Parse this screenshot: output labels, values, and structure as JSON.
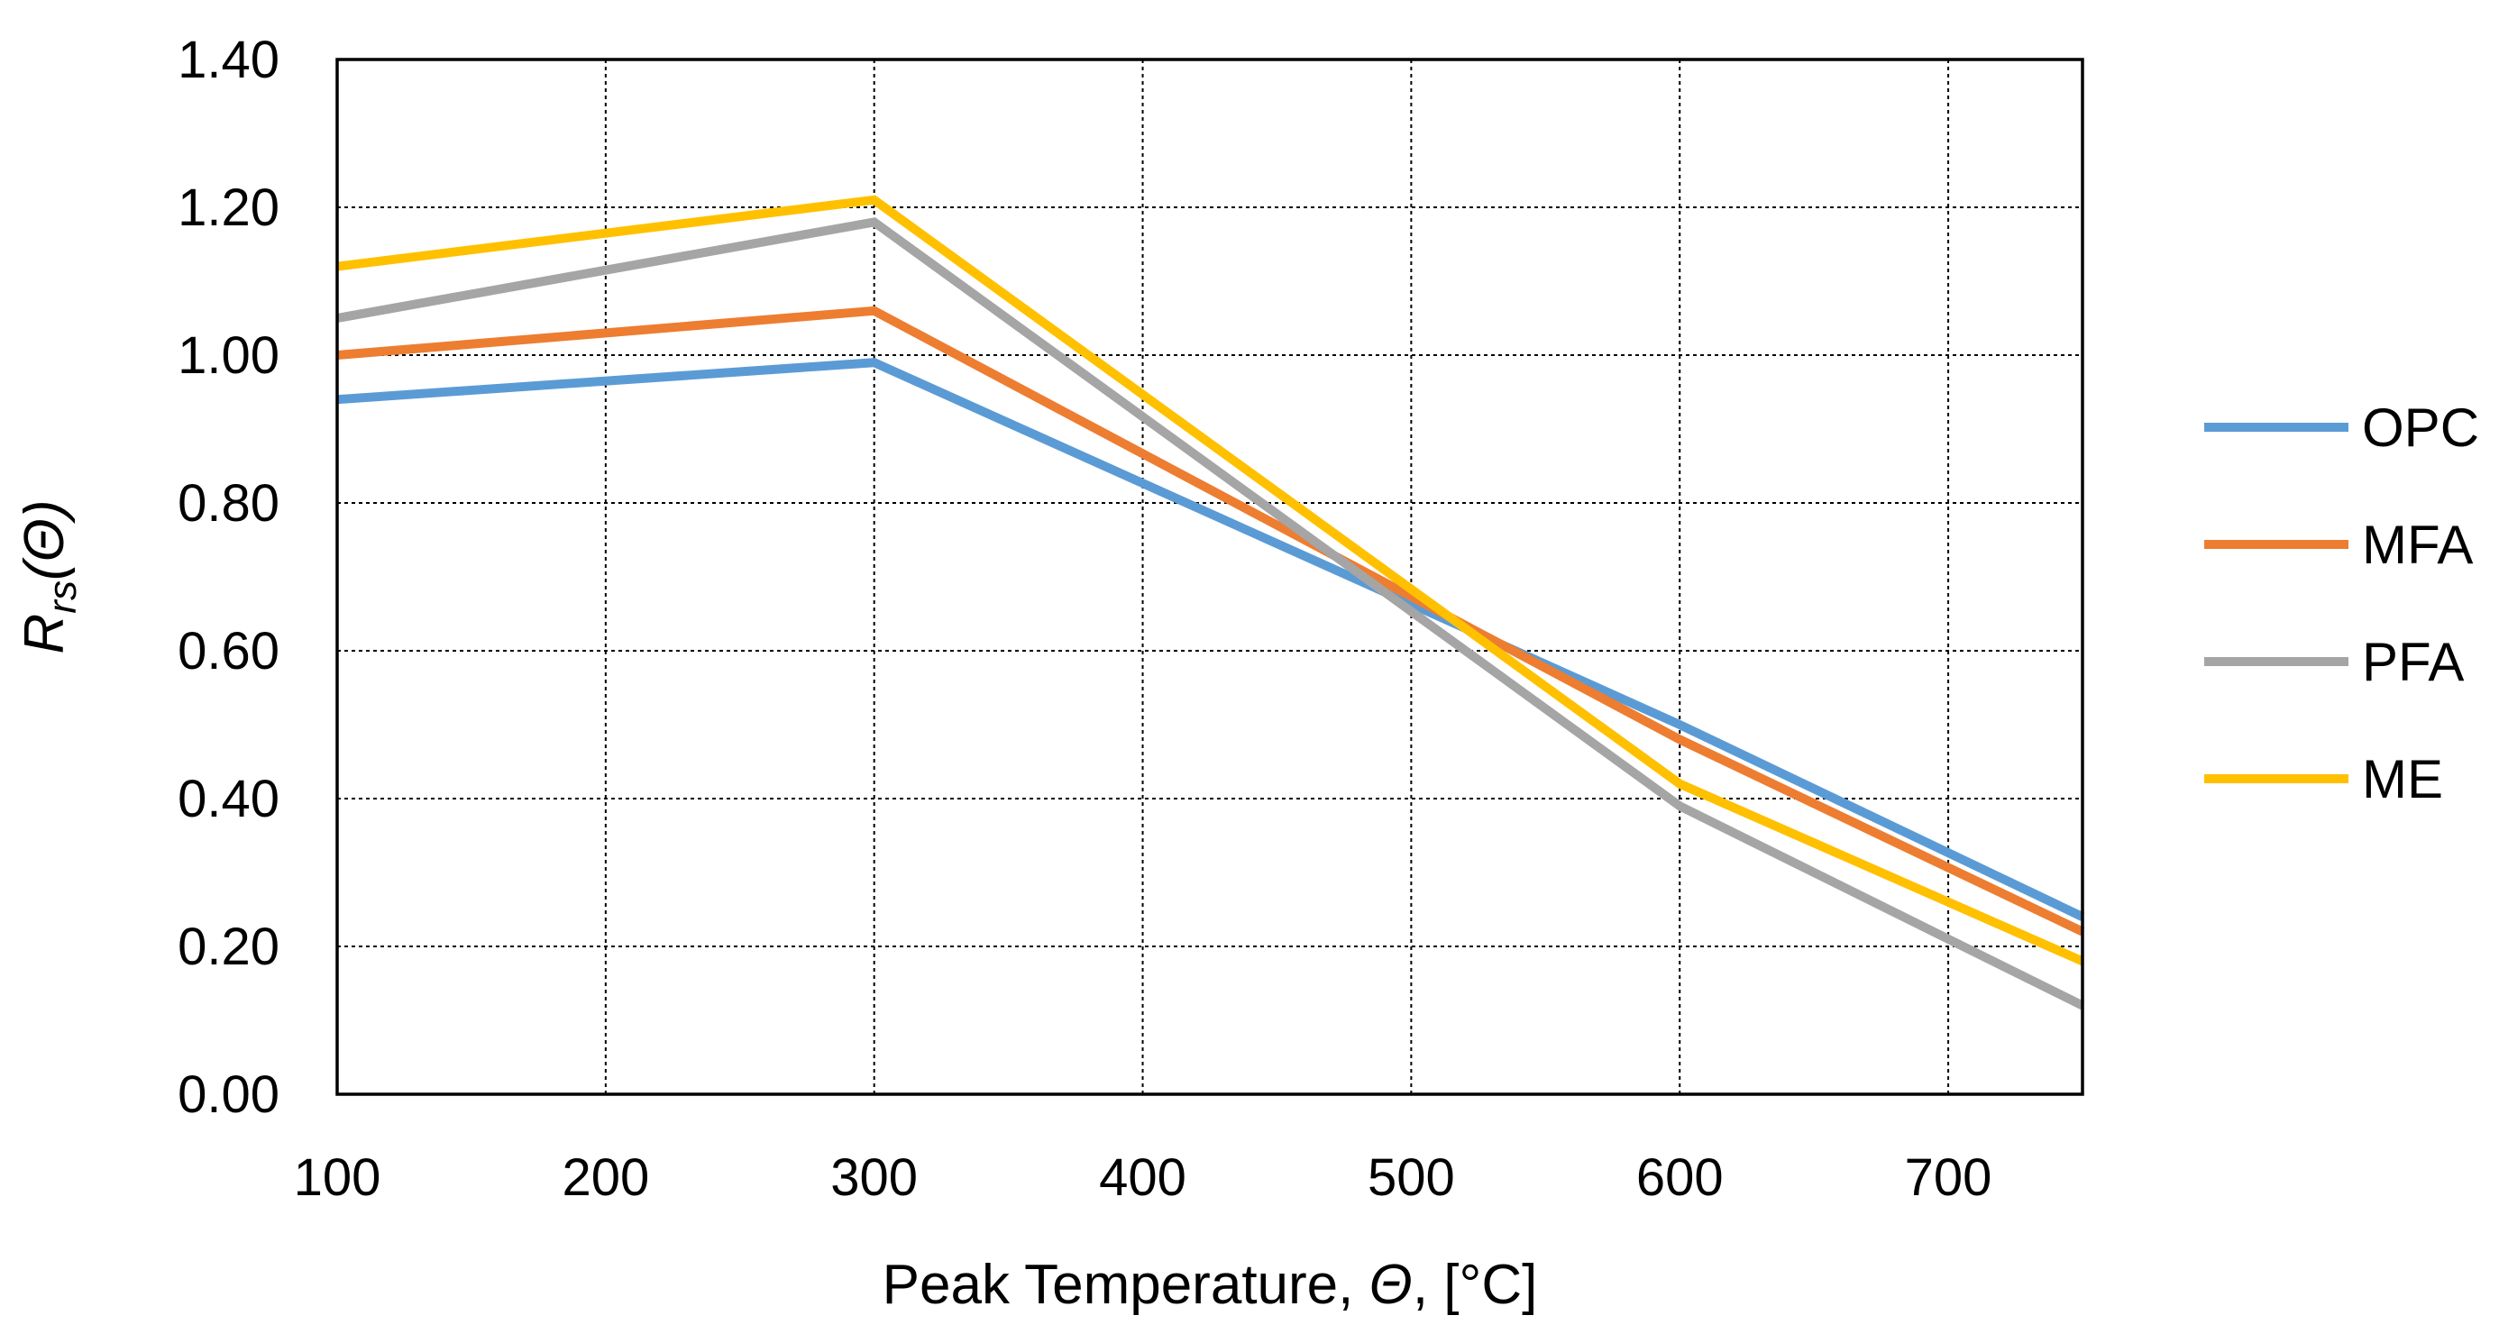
{
  "chart_data": {
    "type": "line",
    "title": "",
    "xlabel": "Peak Temperature, Θ, [°C]",
    "xlabel_parts": [
      "Peak Temperature, ",
      "Θ",
      ", [°C]"
    ],
    "ylabel": "Rrs(Θ)",
    "ylabel_parts": [
      "R",
      "rs",
      "(Θ)"
    ],
    "xlim": [
      100,
      750
    ],
    "ylim": [
      0.0,
      1.4
    ],
    "xticks": [
      100,
      200,
      300,
      400,
      500,
      600,
      700
    ],
    "xtick_labels": [
      "100",
      "200",
      "300",
      "400",
      "500",
      "600",
      "700"
    ],
    "yticks": [
      0.0,
      0.2,
      0.4,
      0.6,
      0.8,
      1.0,
      1.2,
      1.4
    ],
    "ytick_labels": [
      "0.00",
      "0.20",
      "0.40",
      "0.60",
      "0.80",
      "1.00",
      "1.20",
      "1.40"
    ],
    "grid": true,
    "legend_position": "right",
    "x": [
      100,
      300,
      600,
      750
    ],
    "series": [
      {
        "name": "OPC",
        "color": "#5B9BD5",
        "values": [
          0.94,
          0.99,
          0.5,
          0.24
        ]
      },
      {
        "name": "MFA",
        "color": "#ED7D31",
        "values": [
          1.0,
          1.06,
          0.48,
          0.22
        ]
      },
      {
        "name": "PFA",
        "color": "#A5A5A5",
        "values": [
          1.05,
          1.18,
          0.39,
          0.12
        ]
      },
      {
        "name": "ME",
        "color": "#FFC000",
        "values": [
          1.12,
          1.21,
          0.42,
          0.18
        ]
      }
    ]
  }
}
